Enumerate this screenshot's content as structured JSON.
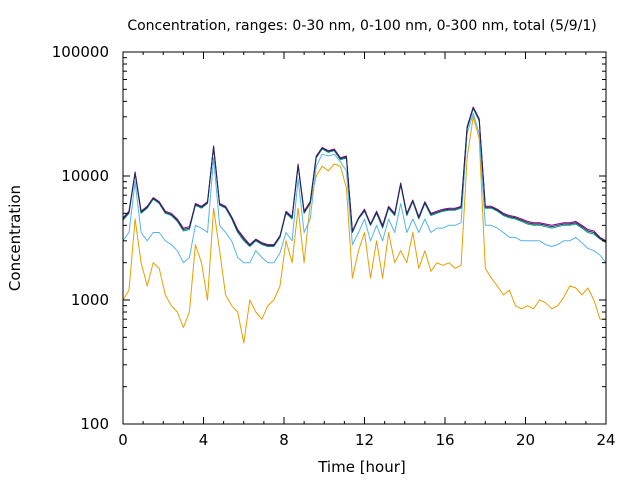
{
  "chart_data": {
    "type": "line",
    "title": "Concentration, ranges: 0-30 nm, 0-100 nm, 0-300 nm, total (5/9/1)",
    "xlabel": "Time [hour]",
    "ylabel": "Concentration",
    "xlim": [
      0,
      24
    ],
    "ylim": [
      100,
      100000
    ],
    "yscale": "log",
    "grid": false,
    "legend": "none",
    "xticks": [
      0,
      4,
      8,
      12,
      16,
      20,
      24
    ],
    "xtick_labels": [
      "0",
      "4",
      "8",
      "12",
      "16",
      "20",
      "24"
    ],
    "yticks": [
      100,
      1000,
      10000,
      100000
    ],
    "ytick_labels": [
      "100",
      "1000",
      "10000",
      "100000"
    ],
    "x": [
      0,
      0.3,
      0.6,
      0.9,
      1.2,
      1.5,
      1.8,
      2.1,
      2.4,
      2.7,
      3.0,
      3.3,
      3.6,
      3.9,
      4.2,
      4.5,
      4.8,
      5.1,
      5.4,
      5.7,
      6.0,
      6.3,
      6.6,
      6.9,
      7.2,
      7.5,
      7.8,
      8.1,
      8.4,
      8.7,
      9.0,
      9.3,
      9.6,
      9.9,
      10.2,
      10.5,
      10.8,
      11.1,
      11.4,
      11.7,
      12.0,
      12.3,
      12.6,
      12.9,
      13.2,
      13.5,
      13.8,
      14.1,
      14.4,
      14.7,
      15.0,
      15.3,
      15.6,
      15.9,
      16.2,
      16.5,
      16.8,
      17.1,
      17.4,
      17.7,
      18.0,
      18.3,
      18.6,
      18.9,
      19.2,
      19.5,
      19.8,
      20.1,
      20.4,
      20.7,
      21.0,
      21.3,
      21.6,
      21.9,
      22.2,
      22.5,
      22.8,
      23.1,
      23.4,
      23.7,
      24.0
    ],
    "series": [
      {
        "color": "#e69f00",
        "values": [
          1000,
          1200,
          4500,
          2000,
          1300,
          2000,
          1800,
          1100,
          900,
          800,
          600,
          800,
          2800,
          2000,
          1000,
          5500,
          2500,
          1100,
          900,
          800,
          450,
          1000,
          800,
          700,
          900,
          1000,
          1300,
          3000,
          2000,
          5500,
          2000,
          6000,
          10000,
          12000,
          11000,
          12500,
          12000,
          8000,
          1500,
          2500,
          3500,
          1500,
          3000,
          1500,
          3500,
          2000,
          2500,
          2000,
          3500,
          1800,
          2500,
          1700,
          2000,
          1900,
          2000,
          1800,
          1900,
          14000,
          30000,
          20000,
          1800,
          1500,
          1300,
          1100,
          1200,
          900,
          850,
          900,
          850,
          1000,
          950,
          850,
          900,
          1050,
          1300,
          1250,
          1100,
          1250,
          1000,
          700,
          700
        ]
      },
      {
        "color": "#56b4e9",
        "values": [
          3000,
          3500,
          9000,
          3500,
          3000,
          3500,
          3500,
          3000,
          2800,
          2500,
          2000,
          2200,
          4000,
          3800,
          3500,
          14000,
          4000,
          3500,
          3000,
          2200,
          2000,
          2000,
          2500,
          2200,
          2000,
          2000,
          2400,
          3500,
          3000,
          9500,
          3500,
          4500,
          12000,
          15000,
          14500,
          15000,
          13000,
          11000,
          2800,
          3500,
          4500,
          3000,
          4000,
          3000,
          4500,
          3500,
          6000,
          3500,
          4500,
          3500,
          4500,
          3500,
          3800,
          3800,
          4000,
          4000,
          4200,
          22000,
          32000,
          22000,
          4000,
          4000,
          3800,
          3500,
          3200,
          3200,
          3000,
          3000,
          3000,
          3000,
          2800,
          2700,
          2800,
          3000,
          3000,
          3200,
          2900,
          2600,
          2500,
          2300,
          2000
        ]
      },
      {
        "color": "#009e73",
        "values": [
          4400,
          5000,
          10500,
          5000,
          5500,
          6500,
          6000,
          5000,
          4800,
          4300,
          3600,
          3700,
          5800,
          5500,
          6000,
          17000,
          5800,
          5500,
          4500,
          3500,
          3000,
          2700,
          3000,
          2800,
          2700,
          2700,
          3200,
          5000,
          4500,
          12000,
          5000,
          6000,
          14000,
          16500,
          15500,
          16000,
          13500,
          14000,
          3500,
          4500,
          5200,
          4000,
          5000,
          3800,
          5500,
          4800,
          8500,
          4800,
          6200,
          4500,
          6000,
          4800,
          5000,
          5200,
          5300,
          5300,
          5500,
          24000,
          35000,
          28000,
          5500,
          5500,
          5200,
          4800,
          4600,
          4500,
          4300,
          4100,
          4000,
          4000,
          3900,
          3800,
          3900,
          4000,
          4000,
          4100,
          3800,
          3500,
          3400,
          3100,
          2900
        ]
      },
      {
        "color": "#8b008b",
        "values": [
          4600,
          5200,
          10800,
          5200,
          5700,
          6700,
          6200,
          5200,
          5000,
          4500,
          3800,
          3900,
          6000,
          5700,
          6200,
          17500,
          6000,
          5700,
          4700,
          3700,
          3200,
          2800,
          3100,
          2900,
          2800,
          2800,
          3300,
          5200,
          4700,
          12500,
          5200,
          6200,
          14500,
          17000,
          16000,
          16500,
          14000,
          14500,
          3600,
          4600,
          5400,
          4100,
          5200,
          4000,
          5700,
          5000,
          8800,
          5000,
          6400,
          4700,
          6200,
          5000,
          5200,
          5400,
          5500,
          5500,
          5700,
          25000,
          36000,
          29000,
          5700,
          5700,
          5400,
          5000,
          4800,
          4700,
          4500,
          4300,
          4200,
          4200,
          4100,
          4000,
          4100,
          4200,
          4200,
          4300,
          4000,
          3700,
          3600,
          3200,
          3000
        ]
      },
      {
        "color": "#1c2b5a",
        "values": [
          4500,
          5100,
          10600,
          5100,
          5600,
          6600,
          6100,
          5100,
          4900,
          4400,
          3700,
          3800,
          5900,
          5600,
          6100,
          17200,
          5900,
          5600,
          4600,
          3600,
          3100,
          2750,
          3050,
          2850,
          2750,
          2750,
          3250,
          5100,
          4600,
          12200,
          5100,
          6100,
          14200,
          16800,
          15800,
          16200,
          13800,
          14200,
          3550,
          4550,
          5300,
          4050,
          5100,
          3900,
          5600,
          4900,
          8600,
          4900,
          6300,
          4600,
          6100,
          4900,
          5100,
          5300,
          5400,
          5400,
          5600,
          24500,
          35500,
          28500,
          5600,
          5600,
          5300,
          4900,
          4700,
          4600,
          4400,
          4200,
          4100,
          4100,
          4000,
          3900,
          4000,
          4100,
          4100,
          4200,
          3900,
          3600,
          3500,
          3150,
          2950
        ]
      }
    ]
  }
}
